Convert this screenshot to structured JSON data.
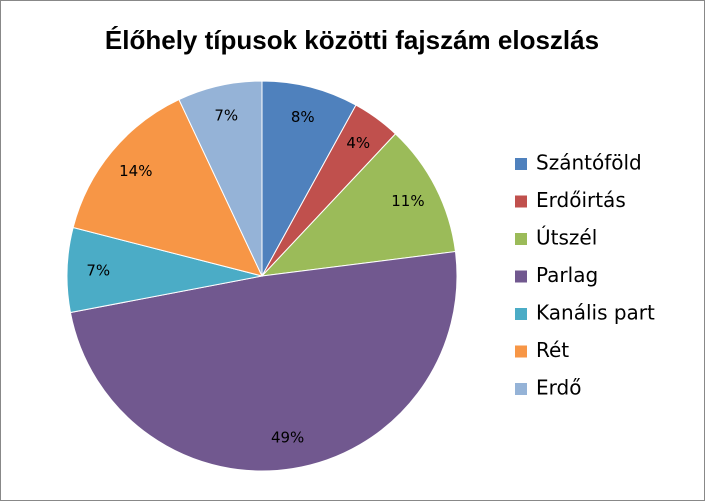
{
  "chart_data": {
    "type": "pie",
    "title": "Élőhely típusok közötti fajszám eloszlás",
    "categories": [
      "Szántóföld",
      "Erdőirtás",
      "Útszél",
      "Parlag",
      "Kanális part",
      "Rét",
      "Erdő"
    ],
    "values": [
      8,
      4,
      11,
      49,
      7,
      14,
      7
    ],
    "value_labels": [
      "8%",
      "4%",
      "11%",
      "49%",
      "7%",
      "14%",
      "7%"
    ],
    "colors": [
      "#4F81BD",
      "#C0504D",
      "#9BBB59",
      "#71588F",
      "#4BACC6",
      "#F79646",
      "#95B3D7"
    ],
    "legend": "right"
  }
}
